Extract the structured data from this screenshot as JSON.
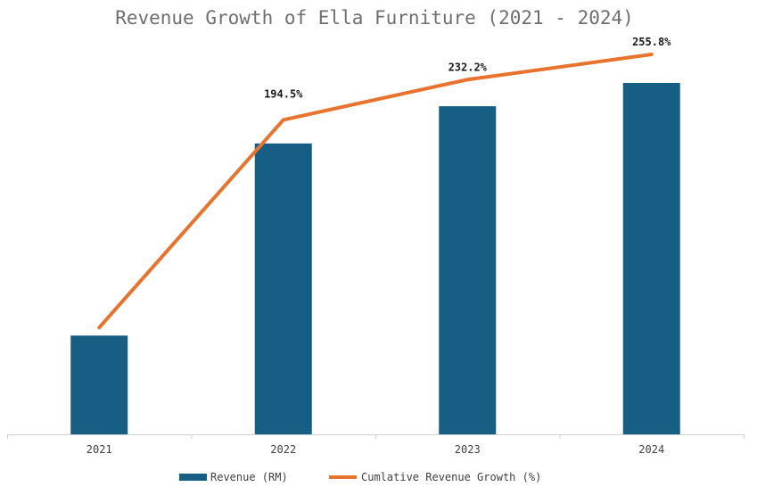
{
  "chart_data": {
    "type": "bar",
    "title": "Revenue Growth of Ella Furniture (2021 - 2024)",
    "categories": [
      "2021",
      "2022",
      "2023",
      "2024"
    ],
    "series": [
      {
        "name": "Revenue (RM)",
        "kind": "bar",
        "color": "#165e83",
        "values": [
          100,
          294.5,
          332.2,
          355.8
        ]
      },
      {
        "name": "Cumlative Revenue Growth (%)",
        "kind": "line",
        "color": "#e8732e",
        "values": [
          0,
          194.5,
          232.2,
          255.8
        ],
        "data_labels": [
          "",
          "194.5%",
          "232.2%",
          "255.8%"
        ]
      }
    ],
    "ylim_bar": [
      0,
      400
    ],
    "ylim_line": [
      -100,
      270
    ],
    "xlabel": "",
    "ylabel": "",
    "grid": false,
    "legend_position": "bottom-center"
  }
}
